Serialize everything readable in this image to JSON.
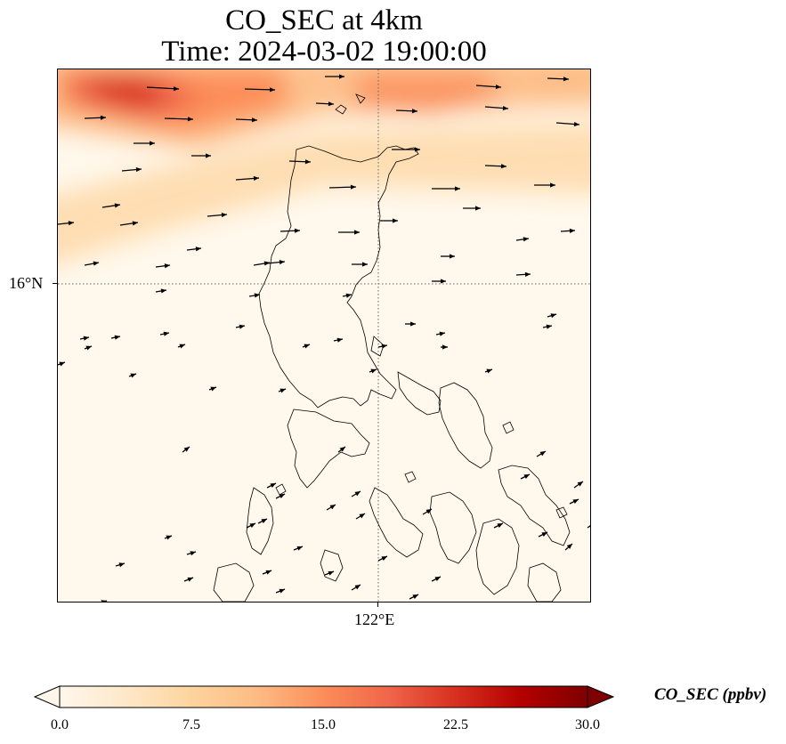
{
  "title": {
    "line1": "CO_SEC at 4km",
    "line2": "Time: 2024-03-02 19:00:00"
  },
  "map": {
    "lat_tick_label": "16°N",
    "lon_tick_label": "122°E",
    "gridline_style": "dotted"
  },
  "colorbar": {
    "label": "CO_SEC (ppbv)",
    "ticks": [
      "0.0",
      "7.5",
      "15.0",
      "22.5",
      "30.0"
    ],
    "min": 0.0,
    "max": 30.0,
    "extend": "both",
    "colormap": "OrRd",
    "colors": [
      "#fff7ec",
      "#fee8c8",
      "#fdd49e",
      "#fdbb84",
      "#fc8d59",
      "#ef6548",
      "#d7301f",
      "#b30000",
      "#7f0000"
    ]
  }
}
